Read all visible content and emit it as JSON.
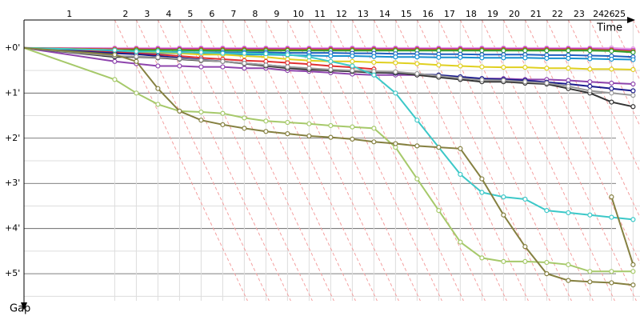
{
  "chart_data": {
    "type": "line",
    "x_title": "Time",
    "y_title": "Gap",
    "xlim": [
      0,
      28.52
    ],
    "ylim": [
      -0.6,
      5.6
    ],
    "xticks": [
      {
        "value": 2.1,
        "label": "1"
      },
      {
        "value": 4.7,
        "label": "2"
      },
      {
        "value": 5.7,
        "label": "3"
      },
      {
        "value": 6.7,
        "label": "4"
      },
      {
        "value": 7.7,
        "label": "5"
      },
      {
        "value": 8.7,
        "label": "6"
      },
      {
        "value": 9.7,
        "label": "7"
      },
      {
        "value": 10.7,
        "label": "8"
      },
      {
        "value": 11.7,
        "label": "9"
      },
      {
        "value": 12.7,
        "label": "10"
      },
      {
        "value": 13.7,
        "label": "11"
      },
      {
        "value": 14.7,
        "label": "12"
      },
      {
        "value": 15.7,
        "label": "13"
      },
      {
        "value": 16.7,
        "label": "14"
      },
      {
        "value": 17.7,
        "label": "15"
      },
      {
        "value": 18.7,
        "label": "16"
      },
      {
        "value": 19.7,
        "label": "17"
      },
      {
        "value": 20.7,
        "label": "18"
      },
      {
        "value": 21.7,
        "label": "19"
      },
      {
        "value": 22.7,
        "label": "20"
      },
      {
        "value": 23.7,
        "label": "21"
      },
      {
        "value": 24.7,
        "label": "22"
      },
      {
        "value": 25.7,
        "label": "23"
      },
      {
        "value": 26.6,
        "label": "24"
      },
      {
        "value": 27.1,
        "label": "26"
      },
      {
        "value": 27.6,
        "label": "25"
      }
    ],
    "yticks": [
      {
        "value": 0,
        "label": "+0'"
      },
      {
        "value": 1,
        "label": "+1'"
      },
      {
        "value": 2,
        "label": "+2'"
      },
      {
        "value": 3,
        "label": "+3'"
      },
      {
        "value": 4,
        "label": "+4'"
      },
      {
        "value": 5,
        "label": "+5'"
      }
    ],
    "minor_yticks": [
      0.5,
      1.5,
      2.5,
      3.5,
      4.5,
      5.5
    ],
    "grid": true,
    "x": [
      0,
      4.2,
      5.2,
      6.2,
      7.2,
      8.2,
      9.2,
      10.2,
      11.2,
      12.2,
      13.2,
      14.2,
      15.2,
      16.2,
      17.2,
      18.2,
      19.2,
      20.2,
      21.2,
      22.2,
      23.2,
      24.2,
      25.2,
      26.2,
      27.2,
      28.2
    ],
    "series": [
      {
        "color": "#e8a0e8",
        "values": [
          0,
          0.0,
          0.0,
          0.0,
          0.0,
          0.0,
          0.0,
          0.0,
          0.0,
          0.0,
          0.0,
          0.0,
          0.0,
          0.0,
          0.0,
          0.0,
          0.0,
          0.0,
          0.0,
          0.0,
          0.0,
          0.0,
          0.0,
          0.0,
          0.0,
          0.02
        ]
      },
      {
        "color": "#c040c0",
        "values": [
          0,
          0.02,
          0.02,
          0.02,
          0.02,
          0.02,
          0.02,
          0.02,
          0.02,
          0.02,
          0.02,
          0.02,
          0.02,
          0.02,
          0.02,
          0.02,
          0.02,
          0.02,
          0.02,
          0.02,
          0.02,
          0.02,
          0.02,
          0.02,
          0.03,
          0.05
        ]
      },
      {
        "color": "#c06010",
        "values": [
          0,
          0.03,
          0.03,
          0.04,
          0.04,
          0.04,
          0.04,
          0.04,
          0.04,
          0.04,
          0.04,
          0.04,
          0.04,
          0.04,
          0.04,
          0.04,
          0.04,
          0.04,
          0.04,
          0.04,
          0.04,
          0.04,
          0.04,
          0.04,
          0.05,
          0.08
        ]
      },
      {
        "color": "#30a030",
        "values": [
          0,
          0.05,
          0.05,
          0.05,
          0.05,
          0.06,
          0.06,
          0.06,
          0.06,
          0.06,
          0.06,
          0.06,
          0.06,
          0.06,
          0.06,
          0.06,
          0.06,
          0.06,
          0.06,
          0.06,
          0.06,
          0.06,
          0.06,
          0.06,
          0.07,
          0.1
        ]
      },
      {
        "color": "#2060c0",
        "values": [
          0,
          0.08,
          0.08,
          0.09,
          0.09,
          0.1,
          0.1,
          0.1,
          0.1,
          0.11,
          0.11,
          0.11,
          0.12,
          0.12,
          0.13,
          0.13,
          0.14,
          0.14,
          0.15,
          0.15,
          0.15,
          0.16,
          0.16,
          0.17,
          0.18,
          0.2
        ]
      },
      {
        "color": "#1890d0",
        "values": [
          0,
          0.1,
          0.1,
          0.12,
          0.12,
          0.13,
          0.14,
          0.15,
          0.15,
          0.16,
          0.17,
          0.18,
          0.18,
          0.19,
          0.2,
          0.2,
          0.21,
          0.21,
          0.22,
          0.22,
          0.22,
          0.23,
          0.23,
          0.24,
          0.25,
          0.26
        ]
      },
      {
        "color": "#e0d020",
        "values": [
          0,
          0.05,
          0.08,
          0.1,
          0.12,
          0.15,
          0.15,
          0.18,
          0.2,
          0.25,
          0.28,
          0.3,
          0.3,
          0.32,
          0.33,
          0.35,
          0.38,
          0.4,
          0.42,
          0.43,
          0.43,
          0.45,
          0.45,
          0.47,
          0.47,
          0.48
        ]
      },
      {
        "color": "#e03030",
        "values": [
          0,
          0.1,
          0.12,
          0.15,
          0.18,
          0.22,
          0.25,
          0.28,
          0.3,
          0.33,
          0.36,
          0.4,
          0.43,
          0.47,
          null,
          null,
          null,
          null,
          null,
          null,
          null,
          null,
          null,
          null,
          null,
          null
        ]
      },
      {
        "color": "#8e44ad",
        "values": [
          0,
          0.3,
          0.35,
          0.4,
          0.4,
          0.42,
          0.42,
          0.45,
          0.45,
          0.5,
          0.52,
          0.55,
          0.58,
          0.6,
          0.6,
          0.6,
          0.62,
          0.65,
          0.68,
          0.68,
          0.7,
          0.7,
          0.72,
          0.75,
          0.78,
          0.8
        ]
      },
      {
        "color": "#1a1a8c",
        "values": [
          0,
          0.12,
          0.14,
          0.18,
          0.22,
          0.26,
          0.3,
          0.34,
          0.38,
          0.42,
          0.46,
          0.5,
          0.52,
          0.54,
          0.56,
          0.58,
          0.6,
          0.64,
          0.68,
          0.7,
          0.72,
          0.76,
          0.8,
          0.85,
          0.9,
          0.95
        ]
      },
      {
        "color": "#333333",
        "values": [
          0,
          0.2,
          0.2,
          0.22,
          0.25,
          0.28,
          0.3,
          0.35,
          0.4,
          0.45,
          0.48,
          0.5,
          0.52,
          0.55,
          0.55,
          0.6,
          0.65,
          0.7,
          0.75,
          0.75,
          0.78,
          0.8,
          0.9,
          1.0,
          1.2,
          1.3
        ]
      },
      {
        "color": "#999999",
        "values": [
          0,
          0.18,
          0.19,
          0.21,
          0.24,
          0.27,
          0.3,
          0.34,
          0.38,
          0.42,
          0.45,
          0.48,
          0.5,
          0.52,
          0.53,
          0.57,
          0.62,
          0.67,
          0.71,
          0.72,
          0.75,
          0.78,
          0.85,
          0.95,
          1.0,
          1.05
        ]
      },
      {
        "color": "#3cc8c8",
        "values": [
          0,
          0.05,
          0.08,
          0.08,
          0.1,
          0.1,
          0.12,
          0.12,
          0.13,
          0.15,
          0.2,
          0.3,
          0.4,
          0.6,
          1.0,
          1.6,
          2.2,
          2.8,
          3.2,
          3.3,
          3.35,
          3.6,
          3.65,
          3.7,
          3.75,
          3.8
        ]
      },
      {
        "color": "#a6c96a",
        "values": [
          0,
          0.7,
          1.0,
          1.25,
          1.4,
          1.42,
          1.45,
          1.55,
          1.62,
          1.65,
          1.68,
          1.72,
          1.75,
          1.78,
          2.2,
          2.9,
          3.6,
          4.3,
          4.65,
          4.73,
          4.73,
          4.75,
          4.8,
          4.95,
          4.95,
          4.95
        ]
      },
      {
        "color": "#858040",
        "values": [
          0,
          0.15,
          0.3,
          0.9,
          1.4,
          1.6,
          1.7,
          1.78,
          1.85,
          1.9,
          1.95,
          1.98,
          2.02,
          2.08,
          2.12,
          2.17,
          2.2,
          2.23,
          2.9,
          3.7,
          4.4,
          5.0,
          5.15,
          5.18,
          5.2,
          5.25
        ]
      },
      {
        "color": "#858040",
        "values": [
          null,
          null,
          null,
          null,
          null,
          null,
          null,
          null,
          null,
          null,
          null,
          null,
          null,
          null,
          null,
          null,
          null,
          null,
          null,
          null,
          null,
          null,
          null,
          null,
          3.3,
          4.8
        ]
      }
    ]
  }
}
